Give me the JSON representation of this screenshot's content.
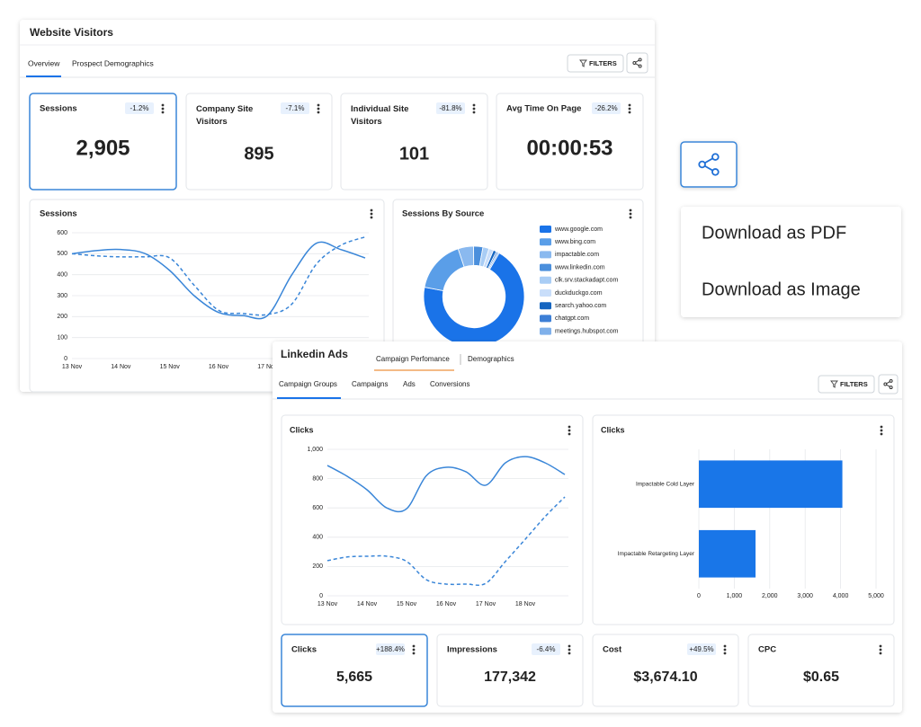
{
  "website_visitors": {
    "title": "Website Visitors",
    "tabs": [
      "Overview",
      "Prospect Demographics"
    ],
    "filters": "FILTERS",
    "kpis": [
      {
        "label": "Sessions",
        "change": "-1.2%",
        "value": "2,905"
      },
      {
        "label": "Company Site Visitors",
        "change": "-7.1%",
        "value": "895"
      },
      {
        "label": "Individual Site Visitors",
        "change": "-81.8%",
        "value": "101"
      },
      {
        "label": "Avg Time On Page",
        "change": "-26.2%",
        "value": "00:00:53"
      }
    ],
    "sessions_chart": {
      "type": "line",
      "title": "Sessions",
      "categories": [
        "13 Nov",
        null,
        "14 Nov",
        null,
        "15 Nov",
        null,
        "16 Nov",
        null,
        "17 Nov",
        null,
        null,
        null,
        null
      ],
      "series": [
        {
          "color": "#3a86d8",
          "dashed": false,
          "values": [
            500,
            515,
            520,
            500,
            420,
            300,
            220,
            205,
            205,
            400,
            550,
            520,
            480
          ]
        },
        {
          "color": "#3a86d8",
          "dashed": true,
          "values": [
            500,
            490,
            485,
            485,
            480,
            350,
            230,
            215,
            210,
            260,
            450,
            540,
            580
          ]
        }
      ],
      "ylim": [
        0,
        600
      ],
      "yticks": [
        0,
        100,
        200,
        300,
        400,
        500,
        600
      ],
      "grid": true
    },
    "source_chart": {
      "type": "pie",
      "donut": true,
      "title": "Sessions By Source",
      "categories": [
        "www.google.com",
        "www.bing.com",
        "impactable.com",
        "www.linkedin.com",
        "clk.srv.stackadapt.com",
        "duckduckgo.com",
        "search.yahoo.com",
        "chatgpt.com",
        "meetings.hubspot.com"
      ],
      "values": [
        70,
        17,
        5,
        3,
        2,
        1.5,
        1,
        0.5,
        0.5
      ],
      "colors": [
        "#1a73e8",
        "#5a9ee8",
        "#8ab9ef",
        "#4b8fdc",
        "#a9cdf5",
        "#c9defa",
        "#1565c0",
        "#3d7fd6",
        "#7fb0ea"
      ]
    }
  },
  "share_menu": {
    "options": [
      "Download as PDF",
      "Download as Image"
    ]
  },
  "linkedin_ads": {
    "title": "Linkedin Ads",
    "tabs": [
      "Campaign Perfomance",
      "Demographics"
    ],
    "subtabs": [
      "Campaign Groups",
      "Campaigns",
      "Ads",
      "Conversions"
    ],
    "filters": "FILTERS",
    "clicks_line": {
      "type": "line",
      "title": "Clicks",
      "categories": [
        "13 Nov",
        null,
        "14 Nov",
        null,
        "15 Nov",
        null,
        "16 Nov",
        null,
        "17 Nov",
        null,
        "18 Nov",
        null,
        null
      ],
      "series": [
        {
          "color": "#3a86d8",
          "dashed": false,
          "values": [
            890,
            816,
            724,
            600,
            594,
            820,
            877,
            847,
            755,
            908,
            950,
            908,
            828
          ]
        },
        {
          "color": "#3a86d8",
          "dashed": true,
          "values": [
            240,
            265,
            270,
            270,
            235,
            110,
            80,
            80,
            85,
            235,
            386,
            540,
            675
          ]
        }
      ],
      "ylim": [
        0,
        1000
      ],
      "yticks": [
        0,
        200,
        400,
        600,
        800,
        {
          "value": 1000,
          "label": "1,000"
        }
      ],
      "grid": true
    },
    "clicks_bar": {
      "type": "bar",
      "orientation": "horizontal",
      "title": "Clicks",
      "categories": [
        "Impactable Cold Layer",
        "Impactable Retargeting Layer"
      ],
      "values": [
        4050,
        1600
      ],
      "color": "#1976e8",
      "xlim": [
        0,
        5000
      ],
      "xticks": [
        0,
        {
          "value": 1000,
          "label": "1,000"
        },
        {
          "value": 2000,
          "label": "2,000"
        },
        {
          "value": 3000,
          "label": "3,000"
        },
        {
          "value": 4000,
          "label": "4,000"
        },
        {
          "value": 5000,
          "label": "5,000"
        }
      ],
      "grid": true
    },
    "kpis": [
      {
        "label": "Clicks",
        "change": "+188.4%",
        "value": "5,665"
      },
      {
        "label": "Impressions",
        "change": "-6.4%",
        "value": "177,342"
      },
      {
        "label": "Cost",
        "change": "+49.5%",
        "value": "$3,674.10"
      },
      {
        "label": "CPC",
        "value": "$0.65"
      }
    ]
  }
}
